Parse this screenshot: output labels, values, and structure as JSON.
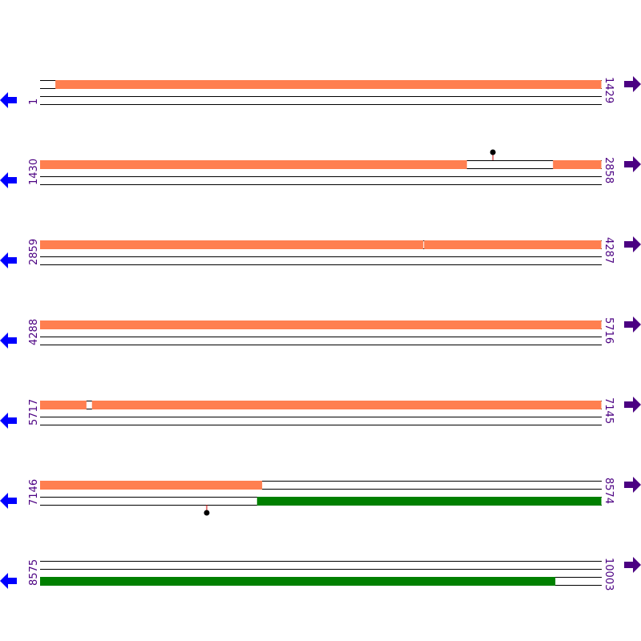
{
  "colors": {
    "forward": "#ff7f50",
    "reverse": "#008000",
    "label": "#4b0082",
    "left_arrow": "#0000ff",
    "right_arrow": "#4b0082",
    "marker_stem": "#cc0000",
    "marker_dot": "#000000"
  },
  "icons": {
    "left": "arrow-left-icon",
    "right": "arrow-right-icon"
  },
  "rows": [
    {
      "start": "1",
      "end": "1429",
      "s": 1,
      "e": 1429,
      "top": [
        [
          40,
          1429
        ]
      ],
      "bottom": [],
      "markers": []
    },
    {
      "start": "1430",
      "end": "2858",
      "s": 1430,
      "e": 2858,
      "top": [
        [
          1430,
          2516
        ],
        [
          2735,
          2858
        ]
      ],
      "bottom": [],
      "markers": [
        {
          "pos": 2582,
          "track": "top"
        }
      ]
    },
    {
      "start": "2859",
      "end": "4287",
      "s": 2859,
      "e": 4287,
      "top": [
        [
          2859,
          3834
        ],
        [
          3836,
          4287
        ]
      ],
      "bottom": [],
      "markers": []
    },
    {
      "start": "4288",
      "end": "5716",
      "s": 4288,
      "e": 5716,
      "top": [
        [
          4288,
          5716
        ]
      ],
      "bottom": [],
      "markers": []
    },
    {
      "start": "5717",
      "end": "7145",
      "s": 5717,
      "e": 7145,
      "top": [
        [
          5717,
          5835
        ],
        [
          5849,
          7145
        ]
      ],
      "bottom": [],
      "markers": []
    },
    {
      "start": "7146",
      "end": "8574",
      "s": 7146,
      "e": 8574,
      "top": [
        [
          7146,
          7711
        ]
      ],
      "bottom": [
        [
          7698,
          8574
        ]
      ],
      "markers": [
        {
          "pos": 7570,
          "track": "bottom"
        }
      ]
    },
    {
      "start": "8575",
      "end": "10003",
      "s": 8575,
      "e": 10003,
      "top": [],
      "bottom": [
        [
          8575,
          9886
        ]
      ],
      "markers": []
    }
  ]
}
